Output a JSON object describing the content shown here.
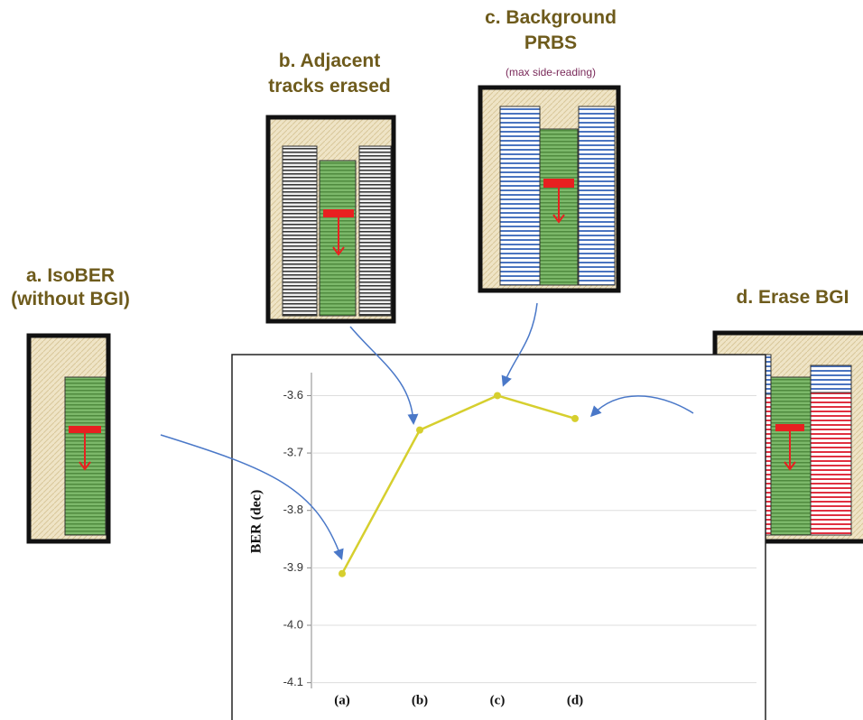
{
  "chart_data": {
    "type": "line",
    "y_label": "BER (dec)",
    "categories": [
      "(a)",
      "(b)",
      "(c)",
      "(d)"
    ],
    "values": [
      -3.91,
      -3.66,
      -3.6,
      -3.64
    ],
    "color": "#d6cf2e",
    "ylim": [
      -4.11,
      -3.56
    ],
    "yticks": [
      -3.6,
      -3.7,
      -3.8,
      -3.9,
      {
        "value": -4,
        "label": "-4.0"
      },
      -4.1
    ],
    "grid": true
  },
  "panels": [
    {
      "title": "a. IsoBER",
      "subtitle": "(without BGI)"
    },
    {
      "title": "b. Adjacent",
      "subtitle": "tracks erased"
    },
    {
      "title": "c. Background",
      "subtitle": "PRBS",
      "note": "(max side-reading)"
    },
    {
      "title": "d. Erase BGI"
    }
  ]
}
